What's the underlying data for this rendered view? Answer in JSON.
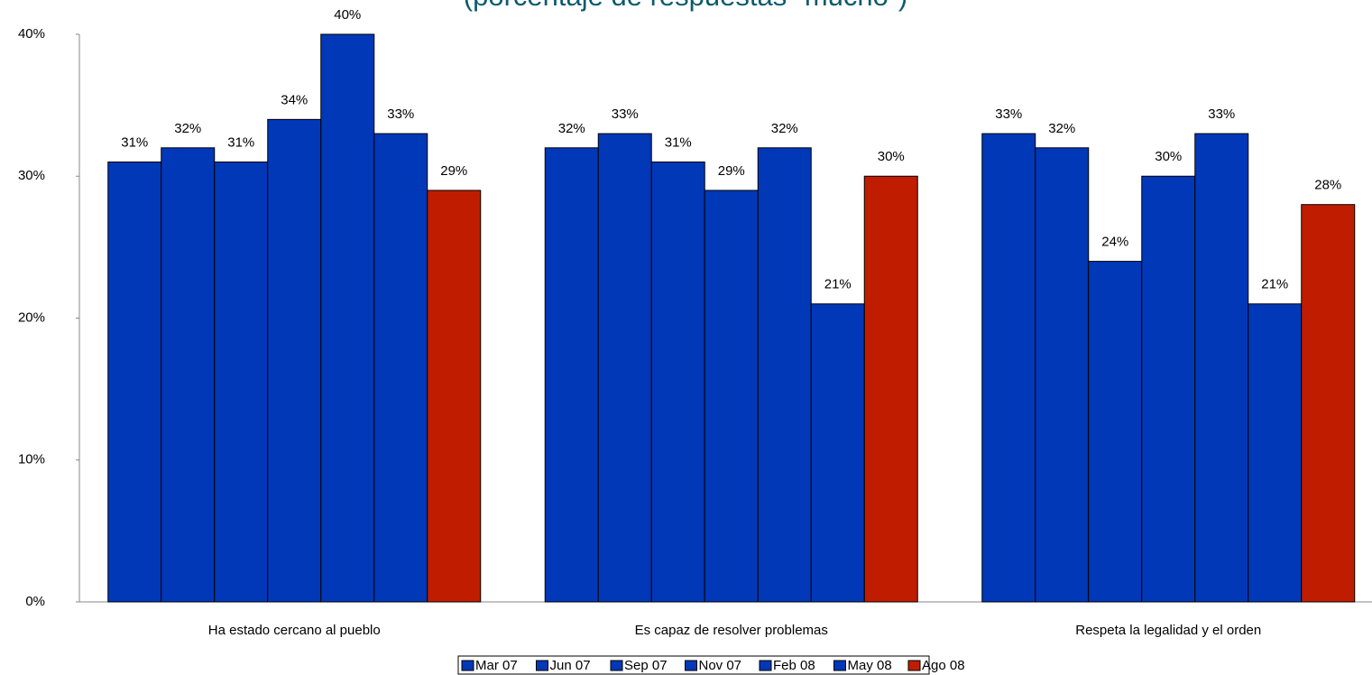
{
  "chart_data": {
    "type": "bar",
    "title": "(porcentaje de respuestas \"mucho\")",
    "categories": [
      "Ha estado cercano al pueblo",
      "Es capaz de resolver problemas",
      "Respeta la legalidad y el orden"
    ],
    "series": [
      {
        "name": "Mar 07",
        "color": "#0038b8",
        "values": [
          31,
          32,
          33
        ],
        "value_labels": [
          "31%",
          "32%",
          "33%"
        ]
      },
      {
        "name": "Jun 07",
        "color": "#0038b8",
        "values": [
          32,
          33,
          32
        ],
        "value_labels": [
          "32%",
          "33%",
          "32%"
        ]
      },
      {
        "name": "Sep 07",
        "color": "#0038b8",
        "values": [
          31,
          31,
          24
        ],
        "value_labels": [
          "31%",
          "31%",
          "24%"
        ]
      },
      {
        "name": "Nov 07",
        "color": "#0038b8",
        "values": [
          34,
          29,
          30
        ],
        "value_labels": [
          "34%",
          "29%",
          "30%"
        ]
      },
      {
        "name": "Feb 08",
        "color": "#0038b8",
        "values": [
          40,
          32,
          33
        ],
        "value_labels": [
          "40%",
          "32%",
          "33%"
        ]
      },
      {
        "name": "May 08",
        "color": "#0038b8",
        "values": [
          33,
          21,
          21
        ],
        "value_labels": [
          "33%",
          "21%",
          "21%"
        ]
      },
      {
        "name": "Ago 08",
        "color": "#c01d00",
        "values": [
          29,
          30,
          28
        ],
        "value_labels": [
          "29%",
          "30%",
          "28%"
        ]
      }
    ],
    "ylim": [
      0,
      40
    ],
    "yticks": [
      {
        "value": 0,
        "label": "0%"
      },
      {
        "value": 10,
        "label": "10%"
      },
      {
        "value": 20,
        "label": "20%"
      },
      {
        "value": 30,
        "label": "30%"
      },
      {
        "value": 40,
        "label": "40%"
      }
    ],
    "grid": false,
    "legend": "bottom"
  }
}
